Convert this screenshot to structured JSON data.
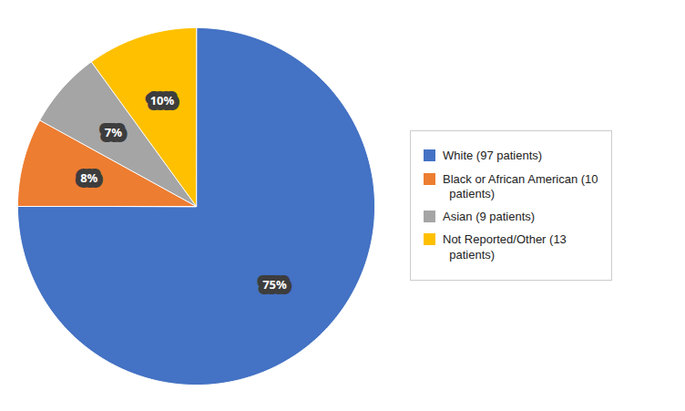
{
  "chart_data": {
    "type": "pie",
    "categories": [
      "White (97 patients)",
      "Black or African American (10\n  patients)",
      "Asian (9 patients)",
      "Not Reported/Other (13\n  patients)"
    ],
    "values": [
      75,
      8,
      7,
      10
    ],
    "value_labels": [
      "75%",
      "8%",
      "7%",
      "10%"
    ],
    "colors": [
      "#4472C4",
      "#ED7D31",
      "#A5A5A5",
      "#FFC000"
    ],
    "data_labels": true,
    "legend": "right"
  }
}
